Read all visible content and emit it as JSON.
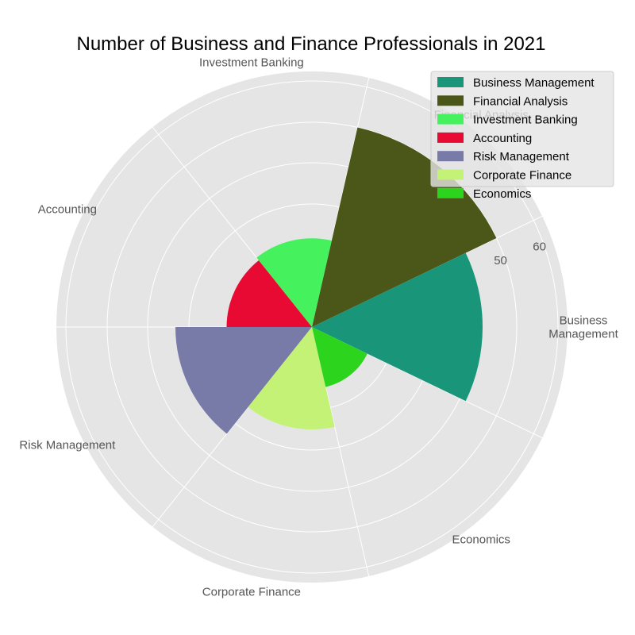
{
  "chart_data": {
    "type": "polar-bar",
    "title": "Number of Business and Finance Professionals in 2021",
    "categories": [
      "Business Management",
      "Financial Analysis",
      "Investment Banking",
      "Accounting",
      "Risk Management",
      "Corporate Finance",
      "Economics"
    ],
    "category_labels": [
      [
        "Business",
        "Management"
      ],
      [
        "Financial Analysis"
      ],
      [
        "Investment Banking"
      ],
      [
        "Accounting"
      ],
      [
        "Risk Management"
      ],
      [
        "Corporate Finance"
      ],
      [
        "Economics"
      ]
    ],
    "values": [
      50,
      60,
      26,
      25,
      40,
      30,
      18
    ],
    "colors": [
      "#19967a",
      "#4b5719",
      "#45f25e",
      "#e80a32",
      "#787aa7",
      "#c4f276",
      "#2dd41e"
    ],
    "radial_ticks": [
      "50",
      "60"
    ],
    "grid": true,
    "legend": "top-right"
  }
}
